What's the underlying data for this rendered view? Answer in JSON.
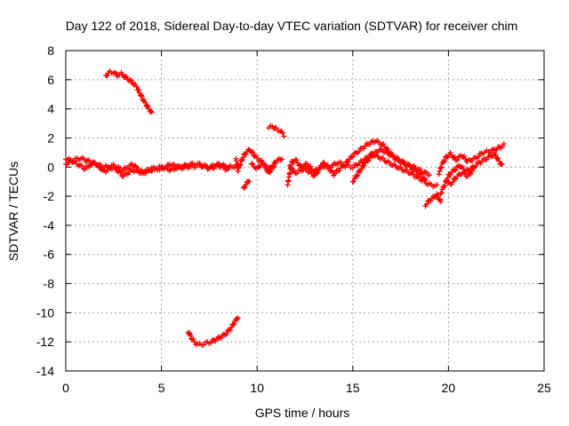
{
  "chart_data": {
    "type": "scatter",
    "title": "Day 122 of 2018, Sidereal Day-to-day VTEC variation (SDTVAR) for receiver chim",
    "xlabel": "GPS time / hours",
    "ylabel": "SDTVAR / TECUs",
    "xlim": [
      0,
      25
    ],
    "ylim": [
      -14,
      8
    ],
    "xticks": [
      0,
      5,
      10,
      15,
      20,
      25
    ],
    "yticks": [
      -14,
      -12,
      -10,
      -8,
      -6,
      -4,
      -2,
      0,
      2,
      4,
      6,
      8
    ],
    "grid": true,
    "marker": "+",
    "series": [
      {
        "name": "SDTVAR",
        "color": "#ff0000",
        "segments": [
          {
            "x": [
              0.0,
              0.4,
              0.8,
              1.2,
              1.6,
              2.0,
              2.5,
              3.0,
              3.5,
              4.0,
              4.5,
              5.0,
              5.5,
              6.0,
              6.5,
              7.0,
              7.5,
              8.0,
              8.5,
              9.0
            ],
            "y": [
              0.2,
              0.5,
              0.6,
              0.4,
              0.2,
              0.0,
              0.1,
              -0.2,
              0.2,
              -0.4,
              -0.1,
              0.0,
              -0.2,
              0.1,
              0.0,
              0.1,
              0.0,
              0.2,
              0.0,
              0.1
            ]
          },
          {
            "x": [
              0.0,
              0.5,
              1.0,
              1.5,
              2.0,
              2.5,
              3.0,
              3.5,
              4.0,
              4.5,
              5.0,
              5.5,
              6.0,
              6.5,
              7.0,
              7.5,
              8.0,
              8.5
            ],
            "y": [
              0.6,
              0.3,
              -0.1,
              0.3,
              -0.3,
              0.0,
              -0.6,
              -0.2,
              -0.4,
              -0.2,
              -0.1,
              0.2,
              -0.1,
              0.2,
              0.2,
              -0.1,
              0.1,
              -0.2
            ]
          },
          {
            "x": [
              2.1,
              2.3,
              2.5,
              2.7,
              2.9,
              3.1,
              3.3,
              3.5,
              3.7,
              3.9,
              4.1,
              4.3,
              4.5
            ],
            "y": [
              6.3,
              6.5,
              6.5,
              6.3,
              6.4,
              6.2,
              6.0,
              5.8,
              5.5,
              5.0,
              4.5,
              4.1,
              3.7
            ]
          },
          {
            "x": [
              6.4,
              6.6,
              6.8,
              7.0,
              7.3,
              7.6,
              7.9,
              8.2,
              8.4,
              8.6,
              8.8,
              9.0
            ],
            "y": [
              -11.3,
              -11.8,
              -12.1,
              -12.2,
              -12.1,
              -12.0,
              -11.8,
              -11.6,
              -11.4,
              -11.1,
              -10.7,
              -10.3
            ]
          },
          {
            "x": [
              8.9,
              9.0,
              9.3,
              9.6,
              10.0,
              10.3,
              10.6,
              11.0,
              11.3
            ],
            "y": [
              0.5,
              -0.2,
              0.8,
              1.2,
              0.6,
              0.3,
              -0.2,
              0.4,
              0.6
            ]
          },
          {
            "x": [
              9.3,
              9.4,
              9.6
            ],
            "y": [
              -1.5,
              -1.2,
              -0.9
            ]
          },
          {
            "x": [
              9.7,
              10.0,
              10.3,
              10.6,
              10.9
            ],
            "y": [
              0.2,
              -0.1,
              0.3,
              -0.4,
              0.1
            ]
          },
          {
            "x": [
              10.6,
              10.8,
              11.0,
              11.2,
              11.4
            ],
            "y": [
              2.7,
              2.8,
              2.6,
              2.5,
              2.2
            ]
          },
          {
            "x": [
              11.6,
              11.8,
              12.0,
              12.3,
              12.6,
              13.0,
              13.4,
              13.8,
              14.2,
              14.6,
              15.0,
              15.4,
              15.8,
              16.2,
              16.6,
              17.0,
              17.4,
              17.8,
              18.2,
              18.6,
              19.0
            ],
            "y": [
              -1.2,
              0.3,
              0.5,
              0.0,
              0.2,
              -0.3,
              0.1,
              0.0,
              0.3,
              0.2,
              0.8,
              1.2,
              1.6,
              1.8,
              1.5,
              0.9,
              0.5,
              0.2,
              0.0,
              -0.3,
              -0.5
            ]
          },
          {
            "x": [
              11.7,
              12.0,
              12.5,
              13.0,
              13.5,
              14.0,
              14.5,
              15.0,
              15.5,
              16.0,
              16.5,
              17.0,
              17.5,
              18.0,
              18.5,
              19.0,
              19.4
            ],
            "y": [
              0.0,
              -0.4,
              -0.1,
              -0.6,
              0.3,
              -0.5,
              0.1,
              0.0,
              0.4,
              0.9,
              0.6,
              0.2,
              -0.1,
              -0.4,
              -0.8,
              -1.2,
              -1.3
            ]
          },
          {
            "x": [
              15.0,
              15.3,
              15.6,
              16.0,
              16.4,
              16.8,
              17.2,
              17.6,
              18.0,
              18.4,
              18.8
            ],
            "y": [
              -1.0,
              -0.4,
              0.2,
              0.8,
              1.2,
              1.0,
              0.6,
              0.3,
              0.0,
              -0.4,
              -0.9
            ]
          },
          {
            "x": [
              18.8,
              19.0,
              19.2,
              19.4,
              19.6
            ],
            "y": [
              -2.6,
              -2.3,
              -2.1,
              -1.9,
              -2.4
            ]
          },
          {
            "x": [
              19.5,
              19.7,
              19.9,
              20.1,
              20.4,
              20.7,
              21.0,
              21.4,
              21.8,
              22.2,
              22.6,
              22.9
            ],
            "y": [
              -0.4,
              0.3,
              0.7,
              0.9,
              0.5,
              0.8,
              0.4,
              0.6,
              1.0,
              1.1,
              1.3,
              1.5
            ]
          },
          {
            "x": [
              19.6,
              19.8,
              20.0,
              20.3,
              20.6,
              20.9,
              21.2,
              21.6,
              22.0,
              22.4,
              22.8
            ],
            "y": [
              -1.8,
              -1.2,
              -0.6,
              -0.2,
              0.1,
              -0.3,
              -0.1,
              0.3,
              0.6,
              0.9,
              0.1
            ]
          },
          {
            "x": [
              19.9,
              20.1,
              20.4,
              20.7,
              21.0,
              21.3
            ],
            "y": [
              -0.9,
              -1.2,
              -0.7,
              -0.4,
              -0.6,
              -0.2
            ]
          }
        ]
      }
    ]
  }
}
